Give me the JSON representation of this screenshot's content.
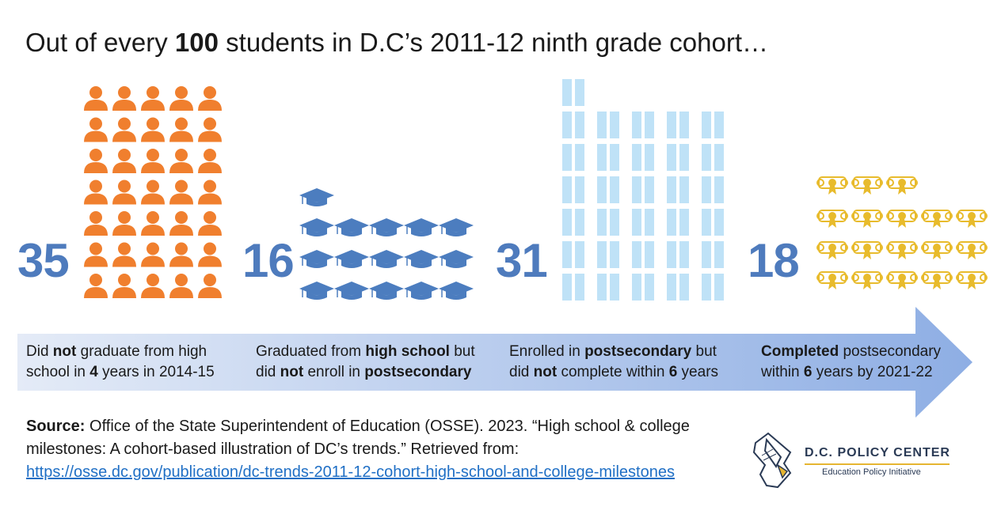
{
  "title": {
    "pre": "Out of every ",
    "bold": "100",
    "post": " students in D.C’s 2011-12 ninth grade cohort…"
  },
  "colors": {
    "orange": "#f07f2e",
    "blue_number": "#4e7bbd",
    "cap_blue": "#4c7dbf",
    "book_blue": "#bfe2f7",
    "diploma_gold": "#e8bb2c",
    "arrow_start": "#e4ebf7",
    "arrow_end": "#8eaee4"
  },
  "stages": [
    {
      "number": "35",
      "icon": "person-icon",
      "count": 35,
      "label": {
        "line1": [
          {
            "t": "Did "
          },
          {
            "t": "not",
            "b": true
          },
          {
            "t": " graduate from high"
          }
        ],
        "line2": [
          {
            "t": "school in "
          },
          {
            "t": "4",
            "b": true
          },
          {
            "t": " years in 2014-15"
          }
        ]
      }
    },
    {
      "number": "16",
      "icon": "graduation-cap-icon",
      "count": 16,
      "label": {
        "line1": [
          {
            "t": "Graduated from "
          },
          {
            "t": "high school",
            "b": true
          },
          {
            "t": " but"
          }
        ],
        "line2": [
          {
            "t": "did "
          },
          {
            "t": "not",
            "b": true
          },
          {
            "t": " enroll in "
          },
          {
            "t": "postsecondary",
            "b": true
          }
        ]
      }
    },
    {
      "number": "31",
      "icon": "book-icon",
      "count": 31,
      "label": {
        "line1": [
          {
            "t": "Enrolled in "
          },
          {
            "t": "postsecondary",
            "b": true
          },
          {
            "t": " but"
          }
        ],
        "line2": [
          {
            "t": "did "
          },
          {
            "t": "not",
            "b": true
          },
          {
            "t": " complete within "
          },
          {
            "t": "6",
            "b": true
          },
          {
            "t": " years"
          }
        ]
      }
    },
    {
      "number": "18",
      "icon": "diploma-icon",
      "count": 18,
      "label": {
        "line1": [
          {
            "t": "Completed",
            "b": true
          },
          {
            "t": " postsecondary"
          }
        ],
        "line2": [
          {
            "t": "within "
          },
          {
            "t": "6",
            "b": true
          },
          {
            "t": " years by 2021-22"
          }
        ]
      }
    }
  ],
  "source": {
    "label": "Source:",
    "text": " Office of the State Superintendent of Education (OSSE). 2023. “High school & college milestones: A cohort-based illustration of DC’s trends.” Retrieved from: ",
    "link": "https://osse.dc.gov/publication/dc-trends-2011-12-cohort-high-school-and-college-milestones"
  },
  "logo": {
    "name": "D.C. POLICY CENTER",
    "subtitle": "Education Policy Initiative",
    "icon": "dc-map-pen-icon"
  }
}
